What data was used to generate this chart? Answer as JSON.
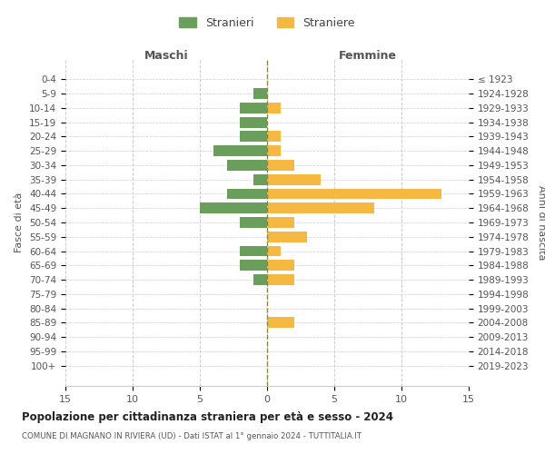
{
  "age_groups": [
    "0-4",
    "5-9",
    "10-14",
    "15-19",
    "20-24",
    "25-29",
    "30-34",
    "35-39",
    "40-44",
    "45-49",
    "50-54",
    "55-59",
    "60-64",
    "65-69",
    "70-74",
    "75-79",
    "80-84",
    "85-89",
    "90-94",
    "95-99",
    "100+"
  ],
  "birth_years": [
    "2019-2023",
    "2014-2018",
    "2009-2013",
    "2004-2008",
    "1999-2003",
    "1994-1998",
    "1989-1993",
    "1984-1988",
    "1979-1983",
    "1974-1978",
    "1969-1973",
    "1964-1968",
    "1959-1963",
    "1954-1958",
    "1949-1953",
    "1944-1948",
    "1939-1943",
    "1934-1938",
    "1929-1933",
    "1924-1928",
    "≤ 1923"
  ],
  "males": [
    0,
    1,
    2,
    2,
    2,
    4,
    3,
    1,
    3,
    5,
    2,
    0,
    2,
    2,
    1,
    0,
    0,
    0,
    0,
    0,
    0
  ],
  "females": [
    0,
    0,
    1,
    0,
    1,
    1,
    2,
    4,
    13,
    8,
    2,
    3,
    1,
    2,
    2,
    0,
    0,
    2,
    0,
    0,
    0
  ],
  "male_color": "#6a9f5b",
  "female_color": "#f5b942",
  "title": "Popolazione per cittadinanza straniera per età e sesso - 2024",
  "subtitle": "COMUNE DI MAGNANO IN RIVIERA (UD) - Dati ISTAT al 1° gennaio 2024 - TUTTITALIA.IT",
  "xlabel_left": "Maschi",
  "xlabel_right": "Femmine",
  "ylabel_left": "Fasce di età",
  "ylabel_right": "Anni di nascita",
  "legend_male": "Stranieri",
  "legend_female": "Straniere",
  "xlim": 15,
  "background_color": "#ffffff",
  "grid_color": "#cccccc"
}
